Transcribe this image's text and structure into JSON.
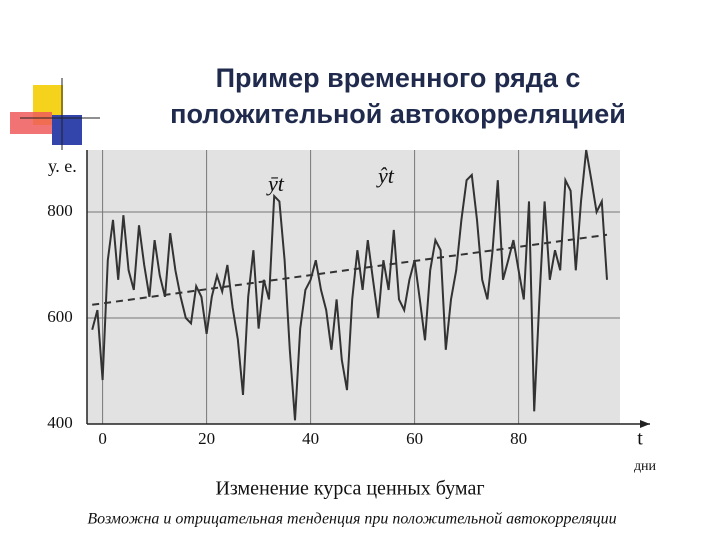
{
  "chart_data": {
    "type": "line",
    "title_lines": [
      "Пример временного ряда с",
      "положительной автокорреляцией"
    ],
    "y_label": "у. е.",
    "x_label": "t",
    "x_unit": "дни",
    "caption": "Изменение курса ценных бумаг",
    "note": "Возможна и отрицательная тенденция при положительной автокорреляции",
    "xlim": [
      -3,
      99.5
    ],
    "ylim": [
      400,
      900
    ],
    "xticks": [
      0,
      20,
      40,
      60,
      80
    ],
    "yticks": [
      400,
      600,
      800
    ],
    "grid": true,
    "series": [
      {
        "name": "ȳt",
        "color": "#333333",
        "style": "solid",
        "x": [
          -2,
          -1,
          0,
          1,
          2,
          3,
          4,
          5,
          6,
          7,
          8,
          9,
          10,
          11,
          12,
          13,
          14,
          15,
          16,
          17,
          18,
          19,
          20,
          21,
          22,
          23,
          24,
          25,
          26,
          27,
          28,
          29,
          30,
          31,
          32,
          33,
          34,
          35,
          36,
          37,
          38,
          39,
          40,
          41,
          42,
          43,
          44,
          45,
          46,
          47,
          48,
          49,
          50,
          51,
          52,
          53,
          54,
          55,
          56,
          57,
          58,
          59,
          60,
          61,
          62,
          63,
          64,
          65,
          66,
          67,
          68,
          69,
          70,
          71,
          72,
          73,
          74,
          75,
          76,
          77,
          78,
          79,
          80,
          81,
          82,
          83,
          84,
          85,
          86,
          87,
          88,
          89,
          90,
          91,
          92,
          93,
          94,
          95,
          96,
          97
        ],
        "values": [
          578,
          615,
          483,
          709,
          785,
          672,
          794,
          690,
          653,
          775,
          700,
          640,
          747,
          680,
          640,
          760,
          690,
          640,
          600,
          590,
          660,
          640,
          570,
          640,
          680,
          650,
          700,
          620,
          560,
          455,
          640,
          728,
          580,
          672,
          635,
          830,
          820,
          709,
          540,
          407,
          580,
          653,
          672,
          709,
          653,
          615,
          540,
          635,
          521,
          464,
          635,
          728,
          653,
          747,
          672,
          600,
          709,
          653,
          766,
          635,
          615,
          672,
          709,
          635,
          558,
          690,
          747,
          728,
          540,
          635,
          690,
          785,
          860,
          870,
          785,
          672,
          635,
          728,
          860,
          672,
          709,
          747,
          690,
          635,
          820,
          424,
          635,
          820,
          672,
          728,
          690,
          860,
          840,
          690,
          820,
          917,
          860,
          800,
          820,
          672
        ]
      },
      {
        "name": "ŷt",
        "color": "#333333",
        "style": "dashed",
        "x": [
          -2,
          97
        ],
        "values": [
          625,
          757
        ]
      }
    ]
  }
}
